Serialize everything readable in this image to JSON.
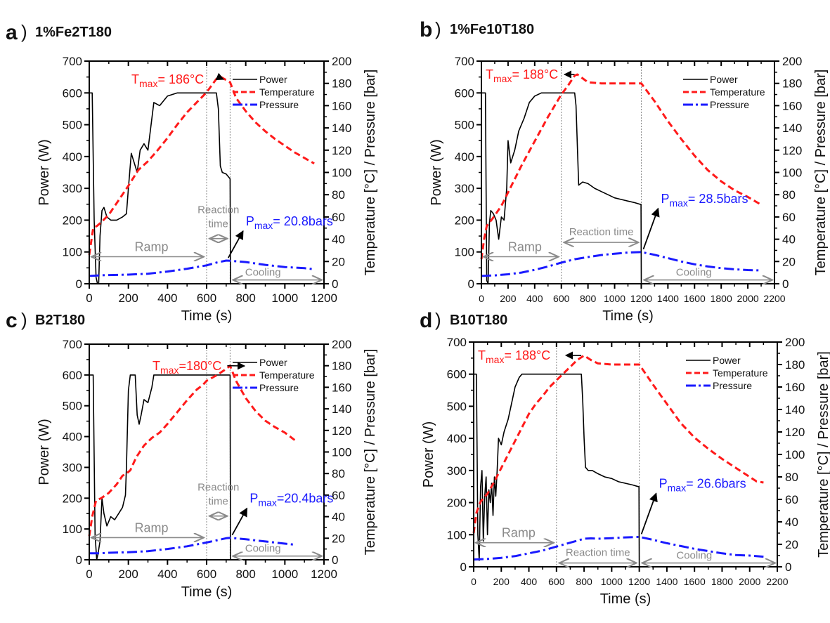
{
  "figure": {
    "colors": {
      "power": "#000000",
      "temperature": "#ff1a1a",
      "pressure": "#1a1aff",
      "annotation": "#8a8a8a"
    }
  },
  "chart_data": [
    {
      "type": "line",
      "panel_letter": "a",
      "title": "1%Fe2T180",
      "xlabel": "Time (s)",
      "ylabel": "Power (W)",
      "y2label": "Temperature [°C] / Pressure [bar]",
      "xlim": [
        0,
        1200
      ],
      "ylim": [
        0,
        700
      ],
      "y2lim": [
        0,
        200
      ],
      "xticks": [
        0,
        200,
        400,
        600,
        800,
        1000,
        1200
      ],
      "yticks": [
        0,
        100,
        200,
        300,
        400,
        500,
        600,
        700
      ],
      "y2ticks": [
        0,
        20,
        40,
        60,
        80,
        100,
        120,
        140,
        160,
        180,
        200
      ],
      "legend": [
        "Power",
        "Temperature",
        "Pressure"
      ],
      "legend_position": "top-right",
      "phase_lines_x": [
        600,
        720
      ],
      "annotations": {
        "tmax_main": "T",
        "tmax_sub": "max",
        "tmax_value": "= 186°C",
        "pmax_main": "P",
        "pmax_sub": "max",
        "pmax_value": "= 20.8bars",
        "ramp": "Ramp",
        "reaction_line1": "Reaction",
        "reaction_line2": "time",
        "cooling": "Cooling"
      },
      "series": [
        {
          "name": "Power",
          "axis": "left",
          "x": [
            0,
            15,
            25,
            35,
            42,
            48,
            55,
            65,
            75,
            90,
            110,
            140,
            170,
            190,
            200,
            215,
            230,
            245,
            260,
            280,
            300,
            330,
            360,
            400,
            450,
            500,
            550,
            600,
            650,
            660,
            670,
            680,
            700,
            720,
            722
          ],
          "y": [
            600,
            600,
            200,
            20,
            0,
            0,
            150,
            230,
            240,
            210,
            200,
            200,
            210,
            220,
            300,
            410,
            380,
            350,
            420,
            440,
            420,
            570,
            560,
            590,
            600,
            600,
            600,
            600,
            600,
            550,
            370,
            350,
            345,
            330,
            0
          ]
        },
        {
          "name": "Temperature",
          "axis": "right",
          "x": [
            0,
            10,
            20,
            40,
            60,
            100,
            150,
            200,
            250,
            300,
            350,
            400,
            450,
            500,
            550,
            600,
            650,
            670,
            700,
            720,
            750,
            800,
            850,
            900,
            950,
            1000,
            1050,
            1100,
            1150
          ],
          "y": [
            26,
            38,
            50,
            52,
            55,
            62,
            75,
            88,
            102,
            110,
            120,
            131,
            143,
            154,
            163,
            172,
            184,
            186,
            183,
            181,
            167,
            155,
            145,
            137,
            130,
            124,
            118,
            113,
            108
          ]
        },
        {
          "name": "Pressure",
          "axis": "right",
          "x": [
            0,
            50,
            100,
            200,
            300,
            400,
            500,
            600,
            650,
            700,
            720,
            800,
            900,
            1000,
            1100,
            1150
          ],
          "y": [
            7,
            7.5,
            7.8,
            8.2,
            9,
            11,
            13.5,
            16.5,
            19,
            20.8,
            20.6,
            19.5,
            17,
            15,
            14,
            13
          ]
        }
      ]
    },
    {
      "type": "line",
      "panel_letter": "b",
      "title": "1%Fe10T180",
      "xlabel": "Time (s)",
      "ylabel": "Power (W)",
      "y2label": "Temperature [°C] / Pressure [bar]",
      "xlim": [
        0,
        2200
      ],
      "ylim": [
        0,
        700
      ],
      "y2lim": [
        0,
        200
      ],
      "xticks": [
        0,
        200,
        400,
        600,
        800,
        1000,
        1200,
        1400,
        1600,
        1800,
        2000,
        2200
      ],
      "yticks": [
        0,
        100,
        200,
        300,
        400,
        500,
        600,
        700
      ],
      "y2ticks": [
        0,
        20,
        40,
        60,
        80,
        100,
        120,
        140,
        160,
        180,
        200
      ],
      "legend": [
        "Power",
        "Temperature",
        "Pressure"
      ],
      "legend_position": "top-right",
      "phase_lines_x": [
        600,
        1200
      ],
      "annotations": {
        "tmax_main": "T",
        "tmax_sub": "max",
        "tmax_value": "= 188°C",
        "pmax_main": "P",
        "pmax_sub": "max",
        "pmax_value": "= 28.5bars",
        "ramp": "Ramp",
        "reaction": "Reaction time",
        "cooling": "Cooling"
      },
      "series": [
        {
          "name": "Power",
          "axis": "left",
          "x": [
            0,
            30,
            40,
            50,
            60,
            70,
            90,
            110,
            130,
            150,
            170,
            190,
            200,
            220,
            250,
            280,
            320,
            360,
            400,
            450,
            500,
            600,
            700,
            710,
            730,
            760,
            800,
            850,
            900,
            950,
            1000,
            1050,
            1100,
            1150,
            1190,
            1198,
            1200
          ],
          "y": [
            600,
            600,
            10,
            0,
            190,
            230,
            220,
            200,
            140,
            210,
            200,
            300,
            450,
            380,
            420,
            480,
            520,
            570,
            590,
            600,
            600,
            600,
            600,
            560,
            310,
            320,
            315,
            300,
            290,
            280,
            270,
            265,
            260,
            255,
            250,
            250,
            0
          ]
        },
        {
          "name": "Temperature",
          "axis": "right",
          "x": [
            0,
            20,
            40,
            80,
            150,
            200,
            300,
            400,
            500,
            600,
            650,
            700,
            720,
            800,
            900,
            1000,
            1100,
            1200,
            1300,
            1400,
            1500,
            1600,
            1700,
            1800,
            1900,
            2000,
            2100
          ],
          "y": [
            22,
            40,
            52,
            58,
            70,
            82,
            106,
            128,
            150,
            170,
            178,
            187,
            188,
            181,
            180,
            180,
            180,
            180,
            164,
            146,
            130,
            115,
            102,
            92,
            84,
            78,
            71
          ]
        },
        {
          "name": "Pressure",
          "axis": "right",
          "x": [
            0,
            100,
            200,
            300,
            400,
            500,
            600,
            700,
            800,
            900,
            1000,
            1100,
            1200,
            1300,
            1400,
            1500,
            1600,
            1700,
            1800,
            1900,
            2000,
            2100
          ],
          "y": [
            7,
            7.5,
            8.5,
            10,
            12.5,
            15.5,
            19,
            22,
            24,
            25.8,
            27,
            28,
            28.5,
            26,
            23,
            20,
            17.5,
            15.5,
            14,
            13,
            12.3,
            12
          ]
        }
      ]
    },
    {
      "type": "line",
      "panel_letter": "c",
      "title": "B2T180",
      "xlabel": "Time (s)",
      "ylabel": "Power (W)",
      "y2label": "Temperature [°C] / Pressure [bar]",
      "xlim": [
        0,
        1200
      ],
      "ylim": [
        0,
        700
      ],
      "y2lim": [
        0,
        200
      ],
      "xticks": [
        0,
        200,
        400,
        600,
        800,
        1000,
        1200
      ],
      "yticks": [
        0,
        100,
        200,
        300,
        400,
        500,
        600,
        700
      ],
      "y2ticks": [
        0,
        20,
        40,
        60,
        80,
        100,
        120,
        140,
        160,
        180,
        200
      ],
      "legend": [
        "Power",
        "Temperature",
        "Pressure"
      ],
      "legend_position": "top-right",
      "phase_lines_x": [
        600,
        720
      ],
      "annotations": {
        "tmax_main": "T",
        "tmax_sub": "max",
        "tmax_value": "=180°C",
        "pmax_main": "P",
        "pmax_sub": "max",
        "pmax_value": "=20.4bars",
        "ramp": "Ramp",
        "reaction_line1": "Reaction",
        "reaction_line2": "time",
        "cooling": "Cooling"
      },
      "series": [
        {
          "name": "Power",
          "axis": "left",
          "x": [
            0,
            20,
            30,
            38,
            45,
            55,
            65,
            75,
            90,
            110,
            130,
            150,
            170,
            185,
            190,
            200,
            210,
            220,
            235,
            245,
            255,
            265,
            280,
            300,
            320,
            330,
            400,
            500,
            600,
            700,
            720,
            722
          ],
          "y": [
            600,
            600,
            80,
            0,
            20,
            60,
            200,
            150,
            110,
            140,
            130,
            150,
            170,
            210,
            300,
            550,
            600,
            600,
            600,
            470,
            440,
            470,
            520,
            510,
            560,
            600,
            600,
            600,
            600,
            600,
            600,
            0
          ]
        },
        {
          "name": "Temperature",
          "axis": "right",
          "x": [
            0,
            15,
            35,
            60,
            100,
            140,
            170,
            190,
            210,
            240,
            280,
            320,
            360,
            400,
            450,
            500,
            550,
            580,
            600,
            650,
            700,
            720,
            750,
            800,
            850,
            900,
            950,
            1000,
            1050
          ],
          "y": [
            22,
            40,
            55,
            57,
            62,
            70,
            78,
            80,
            83,
            95,
            106,
            113,
            118,
            126,
            137,
            148,
            158,
            162,
            166,
            171,
            177,
            180,
            166,
            150,
            138,
            129,
            123,
            118,
            111
          ]
        },
        {
          "name": "Pressure",
          "axis": "right",
          "x": [
            0,
            50,
            100,
            200,
            300,
            400,
            500,
            600,
            650,
            700,
            720,
            800,
            900,
            1000,
            1050
          ],
          "y": [
            6,
            6,
            6.5,
            7,
            8,
            10,
            12.5,
            16,
            18,
            20,
            20.4,
            19,
            17,
            15,
            14
          ]
        }
      ]
    },
    {
      "type": "line",
      "panel_letter": "d",
      "title": "B10T180",
      "xlabel": "Time (s)",
      "ylabel": "Power (W)",
      "y2label": "Temperature [°C] / Pressure [bar]",
      "xlim": [
        0,
        2200
      ],
      "ylim": [
        0,
        700
      ],
      "y2lim": [
        0,
        200
      ],
      "xticks": [
        0,
        200,
        400,
        600,
        800,
        1000,
        1200,
        1400,
        1600,
        1800,
        2000,
        2200
      ],
      "yticks": [
        0,
        100,
        200,
        300,
        400,
        500,
        600,
        700
      ],
      "y2ticks": [
        0,
        20,
        40,
        60,
        80,
        100,
        120,
        140,
        160,
        180,
        200
      ],
      "legend": [
        "Power",
        "Temperature",
        "Pressure"
      ],
      "legend_position": "top-right",
      "phase_lines_x": [
        600,
        1200
      ],
      "annotations": {
        "tmax_main": "T",
        "tmax_sub": "max",
        "tmax_value": "= 188°C",
        "pmax_main": "P",
        "pmax_sub": "max",
        "pmax_value": "= 26.6bars",
        "ramp": "Ramp",
        "reaction": "Reaction time",
        "cooling": "Cooling"
      },
      "series": [
        {
          "name": "Power",
          "axis": "left",
          "x": [
            0,
            20,
            30,
            40,
            50,
            60,
            70,
            80,
            90,
            100,
            110,
            120,
            130,
            140,
            150,
            160,
            170,
            180,
            200,
            220,
            250,
            280,
            300,
            330,
            350,
            400,
            500,
            600,
            700,
            780,
            790,
            800,
            810,
            830,
            860,
            900,
            950,
            1000,
            1050,
            1100,
            1150,
            1190,
            1198,
            1200
          ],
          "y": [
            600,
            600,
            100,
            20,
            250,
            300,
            80,
            220,
            280,
            100,
            240,
            200,
            260,
            160,
            280,
            220,
            300,
            400,
            380,
            420,
            460,
            520,
            560,
            590,
            600,
            600,
            600,
            600,
            600,
            600,
            520,
            400,
            310,
            300,
            300,
            290,
            280,
            275,
            265,
            260,
            255,
            250,
            250,
            0
          ]
        },
        {
          "name": "Temperature",
          "axis": "right",
          "x": [
            0,
            20,
            50,
            100,
            150,
            200,
            250,
            300,
            350,
            400,
            450,
            500,
            550,
            600,
            650,
            700,
            750,
            800,
            850,
            900,
            1000,
            1100,
            1200,
            1300,
            1400,
            1500,
            1600,
            1700,
            1800,
            1900,
            2000,
            2050,
            2100
          ],
          "y": [
            30,
            48,
            58,
            65,
            76,
            88,
            100,
            112,
            124,
            136,
            145,
            152,
            160,
            166,
            172,
            178,
            184,
            188,
            184,
            181,
            180,
            180,
            180,
            162,
            145,
            128,
            115,
            105,
            96,
            88,
            80,
            76,
            75
          ]
        },
        {
          "name": "Pressure",
          "axis": "right",
          "x": [
            0,
            100,
            200,
            300,
            400,
            500,
            600,
            700,
            800,
            850,
            900,
            1000,
            1100,
            1200,
            1300,
            1400,
            1500,
            1600,
            1700,
            1800,
            1900,
            2000,
            2100
          ],
          "y": [
            6.5,
            7,
            8,
            9.5,
            12,
            14.5,
            18,
            21.5,
            25,
            25.3,
            25,
            25.5,
            26.2,
            26.6,
            24,
            21,
            18.5,
            16,
            14,
            12,
            10.5,
            10,
            9
          ]
        }
      ]
    }
  ]
}
